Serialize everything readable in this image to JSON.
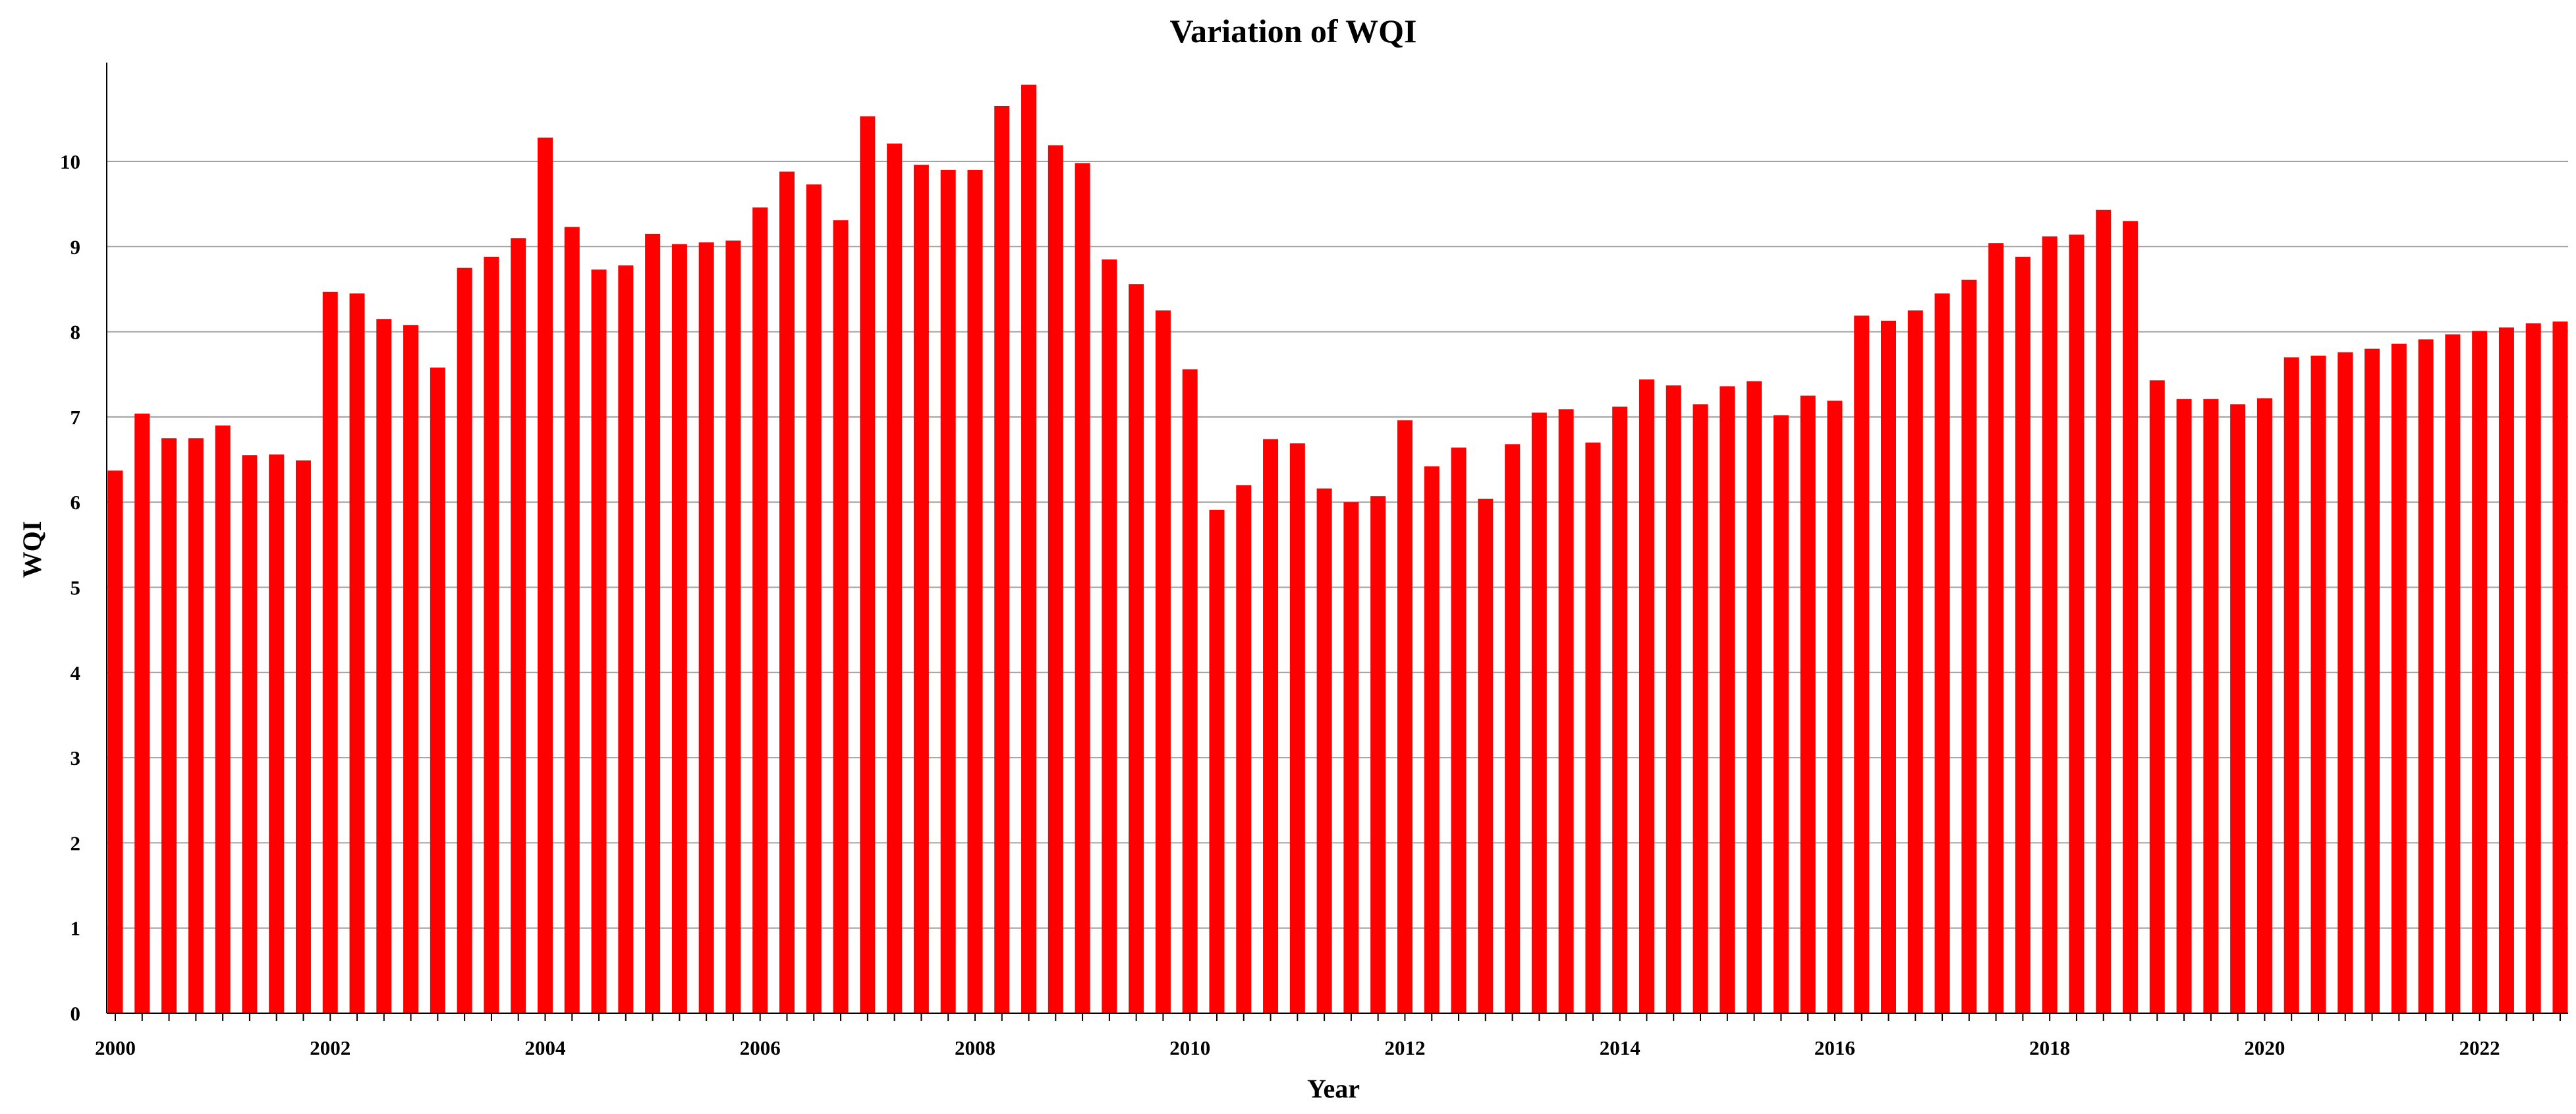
{
  "chart_data": {
    "type": "bar",
    "title": "Variation of WQI",
    "xlabel": "Year",
    "ylabel": "WQI",
    "ylim": [
      0,
      11
    ],
    "xlim": [
      2000.0,
      2022.75
    ],
    "grid": true,
    "legend": "none",
    "y_ticks": [
      "0",
      "1",
      "2",
      "3",
      "4",
      "5",
      "6",
      "7",
      "8",
      "9",
      "10"
    ],
    "x_ticks": [
      "2000",
      "2002",
      "2004",
      "2006",
      "2008",
      "2010",
      "2012",
      "2014",
      "2016",
      "2018",
      "2020",
      "2022"
    ],
    "colors": {
      "bar": "#ff0000",
      "grid": "#a0a0a0",
      "axis": "#000000"
    },
    "series": [
      {
        "x": [
          2000.0,
          2000.25,
          2000.5,
          2000.75,
          2001.0,
          2001.25,
          2001.5,
          2001.75,
          2002.0,
          2002.25,
          2002.5,
          2002.75,
          2003.0,
          2003.25,
          2003.5,
          2003.75,
          2004.0,
          2004.25,
          2004.5,
          2004.75,
          2005.0,
          2005.25,
          2005.5,
          2005.75,
          2006.0,
          2006.25,
          2006.5,
          2006.75,
          2007.0,
          2007.25,
          2007.5,
          2007.75,
          2008.0,
          2008.25,
          2008.5,
          2008.75,
          2009.0,
          2009.25,
          2009.5,
          2009.75,
          2010.0,
          2010.25,
          2010.5,
          2010.75,
          2011.0,
          2011.25,
          2011.5,
          2011.75,
          2012.0,
          2012.25,
          2012.5,
          2012.75,
          2013.0,
          2013.25,
          2013.5,
          2013.75,
          2014.0,
          2014.25,
          2014.5,
          2014.75,
          2015.0,
          2015.25,
          2015.5,
          2015.75,
          2016.0,
          2016.25,
          2016.5,
          2016.75,
          2017.0,
          2017.25,
          2017.5,
          2017.75,
          2018.0,
          2018.25,
          2018.5,
          2018.75,
          2019.0,
          2019.25,
          2019.5,
          2019.75,
          2020.0,
          2020.25,
          2020.5,
          2020.75,
          2021.0,
          2021.25,
          2021.5,
          2021.75,
          2022.0,
          2022.25,
          2022.5,
          2022.75
        ],
        "values": [
          6.37,
          7.04,
          6.75,
          6.75,
          6.9,
          6.55,
          6.56,
          6.49,
          8.47,
          8.45,
          8.15,
          8.08,
          7.58,
          8.75,
          8.88,
          9.1,
          10.28,
          9.23,
          8.73,
          8.78,
          9.15,
          9.03,
          9.05,
          9.07,
          9.46,
          9.88,
          9.73,
          9.31,
          10.53,
          10.21,
          9.96,
          9.9,
          9.9,
          10.65,
          10.9,
          10.19,
          9.98,
          8.85,
          8.56,
          8.25,
          7.56,
          5.91,
          6.2,
          6.74,
          6.69,
          6.16,
          6.0,
          6.07,
          6.96,
          6.42,
          6.64,
          6.04,
          6.68,
          7.05,
          7.09,
          6.7,
          7.12,
          7.44,
          7.37,
          7.15,
          7.36,
          7.42,
          7.02,
          7.25,
          7.19,
          8.19,
          8.13,
          8.25,
          8.45,
          8.61,
          9.04,
          8.88,
          9.12,
          9.14,
          9.43,
          9.3,
          7.43,
          7.21,
          7.21,
          7.15,
          7.22,
          7.7,
          7.72,
          7.76,
          7.8,
          7.86,
          7.91,
          7.97,
          8.01,
          8.05,
          8.1,
          8.12
        ]
      }
    ]
  }
}
